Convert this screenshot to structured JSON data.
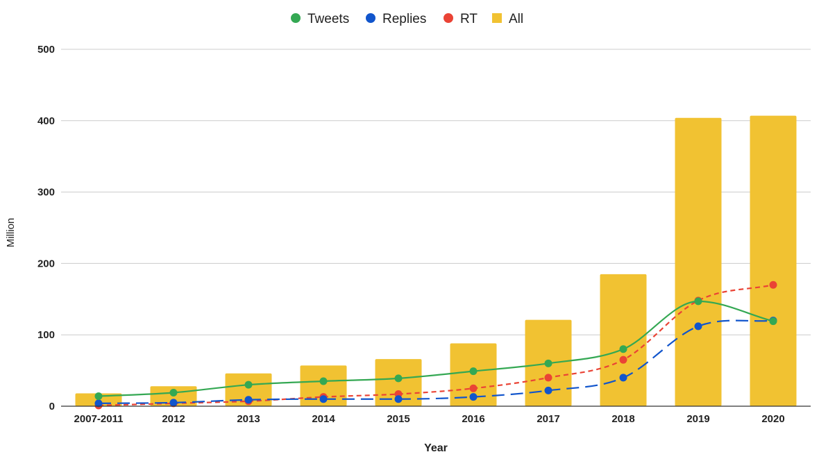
{
  "chart_data": {
    "type": "bar",
    "title": "",
    "xlabel": "Year",
    "ylabel": "Million",
    "ylim": [
      0,
      500
    ],
    "yticks": [
      "0",
      "100",
      "200",
      "300",
      "400",
      "500"
    ],
    "grid": true,
    "legend_position": "top-center",
    "categories": [
      "2007-2011",
      "2012",
      "2013",
      "2014",
      "2015",
      "2016",
      "2017",
      "2018",
      "2019",
      "2020"
    ],
    "series": [
      {
        "name": "Tweets",
        "kind": "line",
        "style": "solid",
        "color": "#34a853",
        "values": [
          14,
          19,
          30,
          35,
          39,
          49,
          60,
          80,
          147,
          119
        ]
      },
      {
        "name": "Replies",
        "kind": "line",
        "style": "long-dash",
        "color": "#1155cc",
        "values": [
          4,
          5,
          9,
          10,
          10,
          13,
          22,
          40,
          112,
          120
        ]
      },
      {
        "name": "RT",
        "kind": "line",
        "style": "short-dash",
        "color": "#ea4335",
        "values": [
          1,
          4,
          7,
          13,
          17,
          25,
          40,
          65,
          148,
          170
        ]
      },
      {
        "name": "All",
        "kind": "bar",
        "color": "#f1c232",
        "values": [
          18,
          28,
          46,
          57,
          66,
          88,
          121,
          185,
          404,
          407
        ]
      }
    ]
  }
}
